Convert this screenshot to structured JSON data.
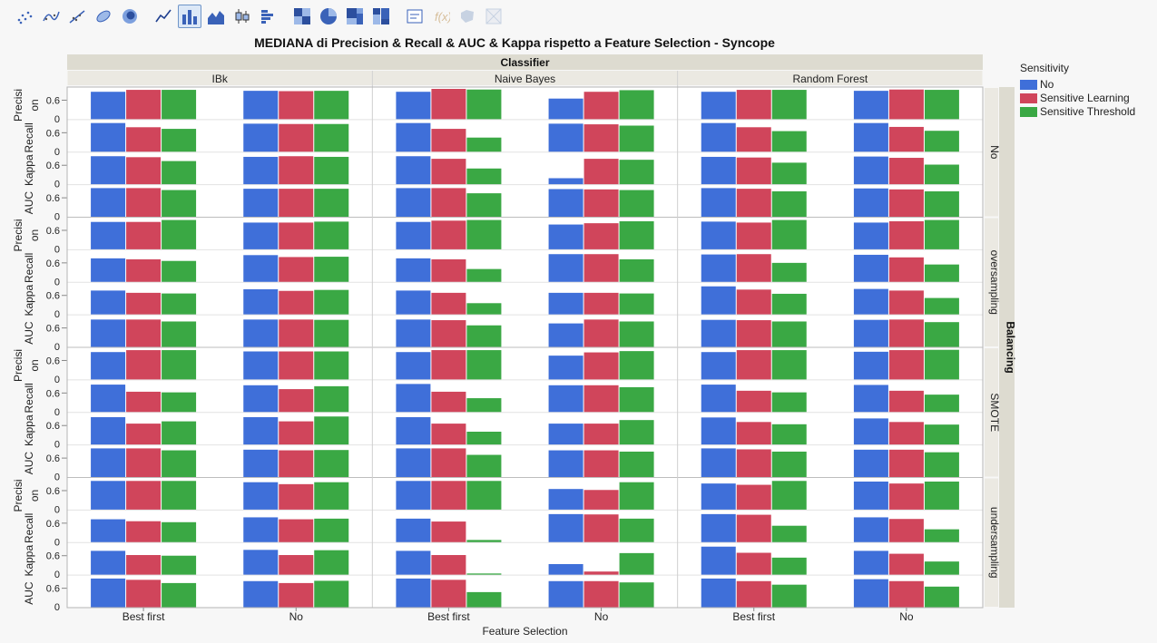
{
  "toolbar": {
    "buttons": [
      {
        "icon": "scatter-icon",
        "state": "normal"
      },
      {
        "icon": "smoother-icon",
        "state": "normal"
      },
      {
        "icon": "line-fit-icon",
        "state": "normal"
      },
      {
        "icon": "ellipse-icon",
        "state": "normal"
      },
      {
        "icon": "contour-icon",
        "state": "normal"
      },
      {
        "icon": "line-chart-icon",
        "state": "normal"
      },
      {
        "icon": "bar-chart-icon",
        "state": "selected"
      },
      {
        "icon": "area-chart-icon",
        "state": "normal"
      },
      {
        "icon": "box-plot-icon",
        "state": "normal"
      },
      {
        "icon": "histogram-icon",
        "state": "normal"
      },
      {
        "icon": "heatmap-icon",
        "state": "normal"
      },
      {
        "icon": "pie-chart-icon",
        "state": "normal"
      },
      {
        "icon": "treemap-icon",
        "state": "normal"
      },
      {
        "icon": "mosaic-icon",
        "state": "normal"
      },
      {
        "icon": "caption-box-icon",
        "state": "normal"
      },
      {
        "icon": "formula-icon",
        "state": "disabled"
      },
      {
        "icon": "map-shape-icon",
        "state": "disabled"
      },
      {
        "icon": "map-grid-icon",
        "state": "disabled"
      }
    ]
  },
  "colors": {
    "No": "#3f6fd9",
    "Sensitive Learning": "#d0455b",
    "Sensitive Threshold": "#3aa844"
  },
  "chart_data": {
    "type": "bar",
    "title": "MEDIANA di Precision & Recall & AUC & Kappa rispetto a Feature Selection - Syncope",
    "column_group_label": "Classifier",
    "classifiers": [
      "IBk",
      "Naive Bayes",
      "Random Forest"
    ],
    "row_group_label": "Balancing",
    "balancing": [
      "No",
      "oversampling",
      "SMOTE",
      "undersampling"
    ],
    "metrics": [
      {
        "name": "Precision",
        "label_lines": [
          "Precisi",
          "on"
        ]
      },
      {
        "name": "Recall",
        "label_lines": [
          "Recall"
        ]
      },
      {
        "name": "Kappa",
        "label_lines": [
          "Kappa"
        ]
      },
      {
        "name": "AUC",
        "label_lines": [
          "AUC"
        ]
      }
    ],
    "y_ticks": [
      "0",
      "0.6"
    ],
    "ylim": [
      0,
      0.95
    ],
    "xlabel": "Feature Selection",
    "categories": [
      "Best first",
      "No"
    ],
    "legend": {
      "title": "Sensitivity",
      "position": "right",
      "entries": [
        "No",
        "Sensitive Learning",
        "Sensitive Threshold"
      ]
    },
    "series_order": [
      "No",
      "Sensitive Learning",
      "Sensitive Threshold"
    ],
    "data": {
      "No": {
        "IBk": {
          "Best first": {
            "Precision": [
              0.86,
              0.92,
              0.92
            ],
            "Recall": [
              0.9,
              0.77,
              0.72
            ],
            "Kappa": [
              0.88,
              0.85,
              0.73
            ],
            "AUC": [
              0.9,
              0.9,
              0.84
            ]
          },
          "No": {
            "Precision": [
              0.89,
              0.88,
              0.89
            ],
            "Recall": [
              0.88,
              0.87,
              0.87
            ],
            "Kappa": [
              0.86,
              0.88,
              0.86
            ],
            "AUC": [
              0.88,
              0.88,
              0.88
            ]
          }
        },
        "Naive Bayes": {
          "Best first": {
            "Precision": [
              0.86,
              0.95,
              0.93
            ],
            "Recall": [
              0.9,
              0.72,
              0.45
            ],
            "Kappa": [
              0.88,
              0.8,
              0.5
            ],
            "AUC": [
              0.9,
              0.9,
              0.74
            ]
          },
          "No": {
            "Precision": [
              0.65,
              0.86,
              0.91
            ],
            "Recall": [
              0.88,
              0.86,
              0.82
            ],
            "Kappa": [
              0.2,
              0.8,
              0.77
            ],
            "AUC": [
              0.87,
              0.86,
              0.84
            ]
          }
        },
        "Random Forest": {
          "Best first": {
            "Precision": [
              0.86,
              0.92,
              0.92
            ],
            "Recall": [
              0.9,
              0.77,
              0.65
            ],
            "Kappa": [
              0.86,
              0.84,
              0.68
            ],
            "AUC": [
              0.9,
              0.88,
              0.8
            ]
          },
          "No": {
            "Precision": [
              0.89,
              0.93,
              0.92
            ],
            "Recall": [
              0.9,
              0.78,
              0.66
            ],
            "Kappa": [
              0.87,
              0.83,
              0.62
            ],
            "AUC": [
              0.89,
              0.86,
              0.8
            ]
          }
        }
      },
      "oversampling": {
        "IBk": {
          "Best first": {
            "Precision": [
              0.86,
              0.86,
              0.92
            ],
            "Recall": [
              0.74,
              0.71,
              0.66
            ],
            "Kappa": [
              0.75,
              0.68,
              0.66
            ],
            "AUC": [
              0.86,
              0.86,
              0.8
            ]
          },
          "No": {
            "Precision": [
              0.84,
              0.84,
              0.87
            ],
            "Recall": [
              0.84,
              0.78,
              0.79
            ],
            "Kappa": [
              0.79,
              0.74,
              0.77
            ],
            "AUC": [
              0.86,
              0.86,
              0.85
            ]
          }
        },
        "Naive Bayes": {
          "Best first": {
            "Precision": [
              0.86,
              0.9,
              0.92
            ],
            "Recall": [
              0.74,
              0.71,
              0.41
            ],
            "Kappa": [
              0.75,
              0.68,
              0.36
            ],
            "AUC": [
              0.86,
              0.84,
              0.68
            ]
          },
          "No": {
            "Precision": [
              0.78,
              0.82,
              0.88
            ],
            "Recall": [
              0.87,
              0.87,
              0.71
            ],
            "Kappa": [
              0.68,
              0.68,
              0.66
            ],
            "AUC": [
              0.74,
              0.86,
              0.8
            ]
          }
        },
        "Random Forest": {
          "Best first": {
            "Precision": [
              0.87,
              0.84,
              0.92
            ],
            "Recall": [
              0.86,
              0.87,
              0.6
            ],
            "Kappa": [
              0.88,
              0.78,
              0.65
            ],
            "AUC": [
              0.85,
              0.84,
              0.8
            ]
          },
          "No": {
            "Precision": [
              0.84,
              0.88,
              0.92
            ],
            "Recall": [
              0.85,
              0.77,
              0.55
            ],
            "Kappa": [
              0.8,
              0.75,
              0.52
            ],
            "AUC": [
              0.85,
              0.86,
              0.78
            ]
          }
        }
      },
      "SMOTE": {
        "IBk": {
          "Best first": {
            "Precision": [
              0.86,
              0.92,
              0.92
            ],
            "Recall": [
              0.86,
              0.64,
              0.62
            ],
            "Kappa": [
              0.86,
              0.66,
              0.73
            ],
            "AUC": [
              0.9,
              0.9,
              0.84
            ]
          },
          "No": {
            "Precision": [
              0.88,
              0.88,
              0.88
            ],
            "Recall": [
              0.84,
              0.72,
              0.81
            ],
            "Kappa": [
              0.86,
              0.73,
              0.88
            ],
            "AUC": [
              0.86,
              0.84,
              0.85
            ]
          }
        },
        "Naive Bayes": {
          "Best first": {
            "Precision": [
              0.86,
              0.92,
              0.92
            ],
            "Recall": [
              0.88,
              0.64,
              0.44
            ],
            "Kappa": [
              0.86,
              0.66,
              0.41
            ],
            "AUC": [
              0.9,
              0.9,
              0.7
            ]
          },
          "No": {
            "Precision": [
              0.75,
              0.85,
              0.89
            ],
            "Recall": [
              0.84,
              0.84,
              0.78
            ],
            "Kappa": [
              0.66,
              0.66,
              0.77
            ],
            "AUC": [
              0.84,
              0.84,
              0.8
            ]
          }
        },
        "Random Forest": {
          "Best first": {
            "Precision": [
              0.86,
              0.92,
              0.92
            ],
            "Recall": [
              0.86,
              0.67,
              0.62
            ],
            "Kappa": [
              0.85,
              0.71,
              0.64
            ],
            "AUC": [
              0.9,
              0.87,
              0.8
            ]
          },
          "No": {
            "Precision": [
              0.87,
              0.92,
              0.93
            ],
            "Recall": [
              0.85,
              0.67,
              0.55
            ],
            "Kappa": [
              0.82,
              0.71,
              0.63
            ],
            "AUC": [
              0.86,
              0.86,
              0.78
            ]
          }
        }
      },
      "undersampling": {
        "IBk": {
          "Best first": {
            "Precision": [
              0.9,
              0.9,
              0.9
            ],
            "Recall": [
              0.72,
              0.66,
              0.63
            ],
            "Kappa": [
              0.75,
              0.62,
              0.6
            ],
            "AUC": [
              0.9,
              0.86,
              0.76
            ]
          },
          "No": {
            "Precision": [
              0.86,
              0.8,
              0.86
            ],
            "Recall": [
              0.78,
              0.72,
              0.74
            ],
            "Kappa": [
              0.78,
              0.62,
              0.77
            ],
            "AUC": [
              0.82,
              0.76,
              0.83
            ]
          }
        },
        "Naive Bayes": {
          "Best first": {
            "Precision": [
              0.9,
              0.9,
              0.9
            ],
            "Recall": [
              0.74,
              0.65,
              0.08
            ],
            "Kappa": [
              0.75,
              0.62,
              0.05
            ],
            "AUC": [
              0.9,
              0.86,
              0.48
            ]
          },
          "No": {
            "Precision": [
              0.65,
              0.62,
              0.86
            ],
            "Recall": [
              0.88,
              0.87,
              0.74
            ],
            "Kappa": [
              0.34,
              0.11,
              0.68
            ],
            "AUC": [
              0.82,
              0.82,
              0.78
            ]
          }
        },
        "Random Forest": {
          "Best first": {
            "Precision": [
              0.82,
              0.78,
              0.9
            ],
            "Recall": [
              0.88,
              0.86,
              0.52
            ],
            "Kappa": [
              0.88,
              0.69,
              0.54
            ],
            "AUC": [
              0.9,
              0.82,
              0.71
            ]
          },
          "No": {
            "Precision": [
              0.88,
              0.82,
              0.88
            ],
            "Recall": [
              0.78,
              0.73,
              0.41
            ],
            "Kappa": [
              0.75,
              0.66,
              0.42
            ],
            "AUC": [
              0.88,
              0.82,
              0.65
            ]
          }
        }
      }
    }
  }
}
